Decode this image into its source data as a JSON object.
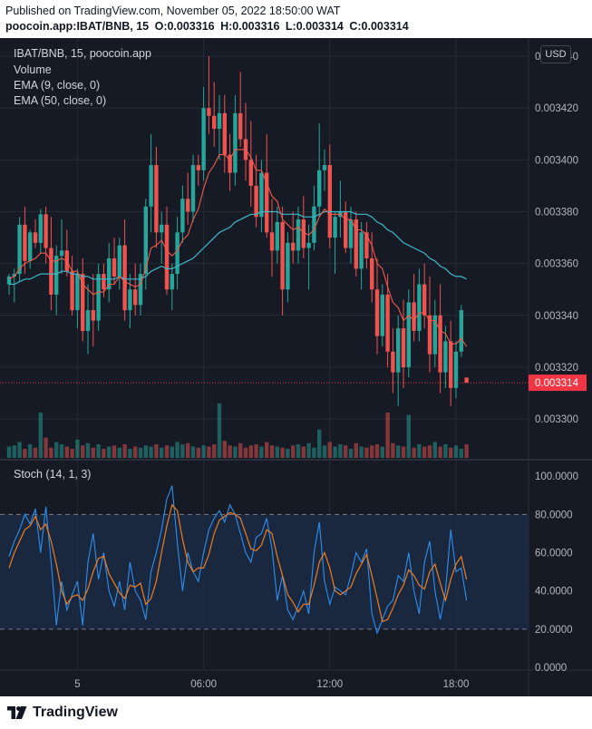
{
  "header": {
    "published": "Published on TradingView.com, November 05, 2022 18:50:00 WAT",
    "symbol_line": "poocoin.app:IBAT/BNB, 15",
    "ohlc": {
      "o": "O:0.003316",
      "h": "H:0.003316",
      "l": "L:0.003314",
      "c": "C:0.003314"
    }
  },
  "legend": {
    "symbol": "IBAT/BNB, 15, poocoin.app",
    "volume": "Volume",
    "ema9": "EMA (9, close, 0)",
    "ema50": "EMA (50, close, 0)",
    "stoch": "Stoch (14, 1, 3)"
  },
  "toolbar": {
    "currency": "USD"
  },
  "brand": {
    "name": "TradingView"
  },
  "colors": {
    "background": "#161a25",
    "up": "#26a69a",
    "down": "#ef5350",
    "ema9": "#f2594b",
    "ema50": "#3fb8c9",
    "stoch_k": "#2f8fed",
    "stoch_d": "#f07d1e",
    "last_price": "#f23645"
  },
  "chart_data": [
    {
      "type": "candlestick",
      "title": "IBAT/BNB, 15, poocoin.app",
      "ylim": [
        0.003285,
        0.003447
      ],
      "y_ticks": [
        "0.003440",
        "0.003420",
        "0.003400",
        "0.003380",
        "0.003360",
        "0.003340",
        "0.003320",
        "0.003300"
      ],
      "x_ticks": [
        {
          "label": "5",
          "index": 13
        },
        {
          "label": "06:00",
          "index": 37
        },
        {
          "label": "12:00",
          "index": 61
        },
        {
          "label": "18:00",
          "index": 85
        }
      ],
      "last_price": {
        "label": "0.003314",
        "value": 0.003314
      },
      "candles": [
        [
          0.003352,
          0.003356,
          0.003348,
          0.003355
        ],
        [
          0.003355,
          0.003358,
          0.003345,
          0.003356
        ],
        [
          0.003356,
          0.003378,
          0.003353,
          0.003375
        ],
        [
          0.003375,
          0.003382,
          0.003356,
          0.003361
        ],
        [
          0.003361,
          0.003373,
          0.003358,
          0.003372
        ],
        [
          0.003372,
          0.003377,
          0.003366,
          0.003368
        ],
        [
          0.003368,
          0.003381,
          0.003364,
          0.003379
        ],
        [
          0.003379,
          0.003382,
          0.00336,
          0.003366
        ],
        [
          0.003366,
          0.003378,
          0.003342,
          0.003348
        ],
        [
          0.003348,
          0.003367,
          0.00334,
          0.003363
        ],
        [
          0.003363,
          0.003377,
          0.003356,
          0.003365
        ],
        [
          0.003365,
          0.003373,
          0.003355,
          0.003357
        ],
        [
          0.003357,
          0.003363,
          0.00334,
          0.003342
        ],
        [
          0.003342,
          0.003358,
          0.003335,
          0.003356
        ],
        [
          0.003356,
          0.003362,
          0.00333,
          0.003334
        ],
        [
          0.003334,
          0.003352,
          0.003325,
          0.003342
        ],
        [
          0.003342,
          0.003356,
          0.003328,
          0.003338
        ],
        [
          0.003338,
          0.00336,
          0.003334,
          0.003356
        ],
        [
          0.003356,
          0.00336,
          0.003347,
          0.00335
        ],
        [
          0.00335,
          0.003368,
          0.003345,
          0.003362
        ],
        [
          0.003362,
          0.00337,
          0.003352,
          0.003355
        ],
        [
          0.003355,
          0.00337,
          0.00335,
          0.003367
        ],
        [
          0.003367,
          0.003377,
          0.003338,
          0.003342
        ],
        [
          0.003342,
          0.003356,
          0.003335,
          0.00335
        ],
        [
          0.00335,
          0.00336,
          0.00334,
          0.003344
        ],
        [
          0.003344,
          0.00336,
          0.00334,
          0.003356
        ],
        [
          0.003356,
          0.003385,
          0.00335,
          0.003382
        ],
        [
          0.003382,
          0.00341,
          0.003372,
          0.003398
        ],
        [
          0.003398,
          0.003405,
          0.003366,
          0.003372
        ],
        [
          0.003372,
          0.00338,
          0.00336,
          0.003375
        ],
        [
          0.003375,
          0.003382,
          0.003348,
          0.00335
        ],
        [
          0.00335,
          0.00336,
          0.003342,
          0.003356
        ],
        [
          0.003356,
          0.003378,
          0.00335,
          0.003372
        ],
        [
          0.003372,
          0.00339,
          0.003368,
          0.003385
        ],
        [
          0.003385,
          0.003395,
          0.003375,
          0.00338
        ],
        [
          0.00338,
          0.003402,
          0.003376,
          0.003398
        ],
        [
          0.003398,
          0.003402,
          0.00339,
          0.003396
        ],
        [
          0.003396,
          0.003428,
          0.003392,
          0.00342
        ],
        [
          0.00342,
          0.00344,
          0.00341,
          0.003417
        ],
        [
          0.003417,
          0.00343,
          0.003405,
          0.003412
        ],
        [
          0.003412,
          0.003425,
          0.0034,
          0.003418
        ],
        [
          0.003418,
          0.003425,
          0.003395,
          0.003402
        ],
        [
          0.003402,
          0.00341,
          0.003388,
          0.003395
        ],
        [
          0.003395,
          0.003425,
          0.00339,
          0.003418
        ],
        [
          0.003418,
          0.003434,
          0.003405,
          0.003408
        ],
        [
          0.003408,
          0.003422,
          0.003392,
          0.0034
        ],
        [
          0.0034,
          0.003415,
          0.003382,
          0.00339
        ],
        [
          0.00339,
          0.003402,
          0.003374,
          0.003378
        ],
        [
          0.003378,
          0.0034,
          0.003372,
          0.003395
        ],
        [
          0.003395,
          0.00341,
          0.00337,
          0.003372
        ],
        [
          0.003372,
          0.003385,
          0.003355,
          0.003365
        ],
        [
          0.003365,
          0.003382,
          0.00336,
          0.003376
        ],
        [
          0.003376,
          0.003382,
          0.00334,
          0.00335
        ],
        [
          0.00335,
          0.003372,
          0.003345,
          0.003368
        ],
        [
          0.003368,
          0.00338,
          0.00336,
          0.003365
        ],
        [
          0.003365,
          0.003382,
          0.00336,
          0.003377
        ],
        [
          0.003377,
          0.003386,
          0.003362,
          0.003366
        ],
        [
          0.003366,
          0.003375,
          0.00335,
          0.003368
        ],
        [
          0.003368,
          0.00339,
          0.003365,
          0.003382
        ],
        [
          0.003382,
          0.003414,
          0.003378,
          0.003396
        ],
        [
          0.003396,
          0.003404,
          0.003388,
          0.003398
        ],
        [
          0.003398,
          0.003406,
          0.003366,
          0.00337
        ],
        [
          0.00337,
          0.00338,
          0.003356,
          0.003378
        ],
        [
          0.003378,
          0.003392,
          0.00337,
          0.00338
        ],
        [
          0.00338,
          0.003384,
          0.003364,
          0.003366
        ],
        [
          0.003366,
          0.003382,
          0.00336,
          0.003377
        ],
        [
          0.003377,
          0.00338,
          0.003355,
          0.003358
        ],
        [
          0.003358,
          0.003376,
          0.00335,
          0.003372
        ],
        [
          0.003372,
          0.003376,
          0.003358,
          0.003362
        ],
        [
          0.003362,
          0.003372,
          0.003345,
          0.00335
        ],
        [
          0.00335,
          0.003362,
          0.003325,
          0.003332
        ],
        [
          0.003332,
          0.003352,
          0.003328,
          0.003348
        ],
        [
          0.003348,
          0.003356,
          0.00332,
          0.003326
        ],
        [
          0.003326,
          0.003335,
          0.00331,
          0.003318
        ],
        [
          0.003318,
          0.00334,
          0.003305,
          0.003335
        ],
        [
          0.003335,
          0.003346,
          0.003312,
          0.00332
        ],
        [
          0.00332,
          0.00335,
          0.003316,
          0.003345
        ],
        [
          0.003345,
          0.003356,
          0.00333,
          0.003334
        ],
        [
          0.003334,
          0.003358,
          0.00333,
          0.003352
        ],
        [
          0.003352,
          0.00336,
          0.003335,
          0.00334
        ],
        [
          0.00334,
          0.003355,
          0.003318,
          0.003325
        ],
        [
          0.003325,
          0.003346,
          0.00332,
          0.00334
        ],
        [
          0.00334,
          0.003352,
          0.00331,
          0.003318
        ],
        [
          0.003318,
          0.003336,
          0.003312,
          0.00333
        ],
        [
          0.00333,
          0.003338,
          0.003305,
          0.003312
        ],
        [
          0.003312,
          0.00333,
          0.003308,
          0.003326
        ],
        [
          0.003326,
          0.003344,
          0.003324,
          0.003342
        ],
        [
          0.003316,
          0.003316,
          0.003314,
          0.003314
        ]
      ],
      "volume": [
        10,
        11,
        14,
        8,
        12,
        9,
        40,
        18,
        9,
        14,
        12,
        10,
        8,
        16,
        11,
        13,
        9,
        12,
        8,
        10,
        11,
        9,
        12,
        8,
        10,
        9,
        11,
        10,
        12,
        9,
        11,
        10,
        14,
        12,
        13,
        10,
        9,
        11,
        10,
        12,
        48,
        15,
        11,
        10,
        13,
        9,
        11,
        12,
        10,
        14,
        11,
        10,
        9,
        8,
        11,
        12,
        10,
        13,
        9,
        25,
        11,
        14,
        10,
        12,
        11,
        8,
        13,
        10,
        9,
        11,
        12,
        10,
        40,
        13,
        11,
        10,
        38,
        9,
        12,
        10,
        11,
        14,
        10,
        12,
        9,
        11,
        8,
        12
      ],
      "ema9": [
        0.003354,
        0.003355,
        0.003358,
        0.00336,
        0.003361,
        0.003362,
        0.003364,
        0.003364,
        0.003361,
        0.003361,
        0.003362,
        0.003361,
        0.003357,
        0.003357,
        0.003352,
        0.00335,
        0.003348,
        0.003349,
        0.003349,
        0.003352,
        0.003352,
        0.003355,
        0.003353,
        0.003352,
        0.003351,
        0.003352,
        0.003358,
        0.003366,
        0.003367,
        0.003369,
        0.003365,
        0.003363,
        0.003365,
        0.003369,
        0.003371,
        0.003377,
        0.003381,
        0.003389,
        0.003395,
        0.003398,
        0.003402,
        0.003402,
        0.0034,
        0.003404,
        0.003404,
        0.003404,
        0.003401,
        0.003396,
        0.003396,
        0.003391,
        0.003386,
        0.003384,
        0.003377,
        0.003375,
        0.003373,
        0.003374,
        0.003372,
        0.003371,
        0.003373,
        0.003378,
        0.003381,
        0.003379,
        0.003379,
        0.003379,
        0.003377,
        0.003377,
        0.003373,
        0.003373,
        0.003371,
        0.003367,
        0.00336,
        0.003358,
        0.003351,
        0.003345,
        0.003343,
        0.003338,
        0.00334,
        0.003338,
        0.003341,
        0.003341,
        0.003338,
        0.003338,
        0.003334,
        0.003333,
        0.003329,
        0.003329,
        0.003331,
        0.003328
      ],
      "ema50": [
        0.003352,
        0.003352,
        0.003353,
        0.003354,
        0.003354,
        0.003355,
        0.003356,
        0.003356,
        0.003356,
        0.003356,
        0.003357,
        0.003357,
        0.003356,
        0.003356,
        0.003355,
        0.003355,
        0.003354,
        0.003354,
        0.003354,
        0.003354,
        0.003354,
        0.003355,
        0.003354,
        0.003354,
        0.003354,
        0.003354,
        0.003355,
        0.003357,
        0.003358,
        0.003359,
        0.003358,
        0.003358,
        0.003359,
        0.00336,
        0.003361,
        0.003362,
        0.003364,
        0.003366,
        0.003368,
        0.00337,
        0.003372,
        0.003373,
        0.003374,
        0.003376,
        0.003377,
        0.003378,
        0.003379,
        0.003379,
        0.00338,
        0.00338,
        0.00338,
        0.00338,
        0.003379,
        0.003379,
        0.003379,
        0.003379,
        0.003378,
        0.003378,
        0.003378,
        0.003379,
        0.00338,
        0.00338,
        0.00338,
        0.00338,
        0.00338,
        0.00338,
        0.003379,
        0.003379,
        0.003379,
        0.003378,
        0.003376,
        0.003375,
        0.003373,
        0.003372,
        0.00337,
        0.003368,
        0.003367,
        0.003366,
        0.003365,
        0.003364,
        0.003362,
        0.003361,
        0.003359,
        0.003358,
        0.003356,
        0.003355,
        0.003355,
        0.003354
      ]
    },
    {
      "type": "line",
      "title": "Stoch (14, 1, 3)",
      "ylim": [
        0,
        100
      ],
      "y_ticks": [
        "100.0000",
        "80.0000",
        "60.0000",
        "40.0000",
        "20.0000",
        "0.0000"
      ],
      "band": [
        20,
        80
      ],
      "series": [
        {
          "name": "%K",
          "values": [
            58,
            66,
            72,
            80,
            75,
            83,
            60,
            84,
            55,
            22,
            45,
            30,
            38,
            45,
            22,
            55,
            70,
            46,
            60,
            40,
            32,
            45,
            30,
            55,
            40,
            35,
            25,
            50,
            60,
            72,
            88,
            95,
            65,
            40,
            60,
            50,
            45,
            60,
            72,
            78,
            82,
            76,
            85,
            80,
            70,
            60,
            55,
            68,
            70,
            78,
            62,
            35,
            48,
            30,
            25,
            32,
            40,
            28,
            60,
            76,
            45,
            33,
            42,
            40,
            38,
            48,
            60,
            55,
            62,
            28,
            18,
            25,
            32,
            35,
            48,
            45,
            60,
            40,
            28,
            55,
            66,
            40,
            25,
            40,
            72,
            50,
            52,
            35
          ]
        },
        {
          "name": "%D",
          "values": [
            52,
            60,
            66,
            72,
            74,
            79,
            72,
            75,
            66,
            54,
            40,
            33,
            37,
            38,
            35,
            41,
            50,
            57,
            58,
            49,
            44,
            39,
            36,
            43,
            42,
            44,
            33,
            36,
            45,
            60,
            74,
            85,
            82,
            67,
            55,
            50,
            52,
            52,
            59,
            70,
            77,
            79,
            81,
            80,
            78,
            70,
            62,
            61,
            64,
            72,
            70,
            58,
            48,
            38,
            34,
            29,
            33,
            33,
            43,
            55,
            60,
            52,
            40,
            38,
            40,
            42,
            49,
            54,
            59,
            48,
            36,
            24,
            25,
            31,
            38,
            43,
            51,
            48,
            43,
            41,
            50,
            54,
            44,
            35,
            46,
            54,
            58,
            46
          ]
        }
      ]
    }
  ]
}
